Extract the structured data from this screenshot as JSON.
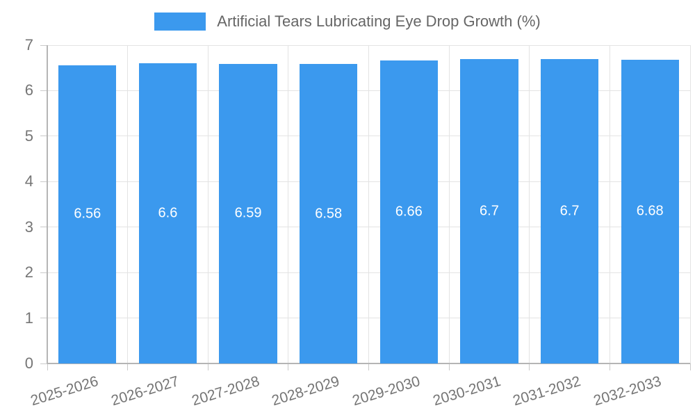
{
  "chart_data": {
    "type": "bar",
    "title": "",
    "series_name": "Artificial Tears Lubricating Eye Drop Growth (%)",
    "categories": [
      "2025-2026",
      "2026-2027",
      "2027-2028",
      "2028-2029",
      "2029-2030",
      "2030-2031",
      "2031-2032",
      "2032-2033"
    ],
    "values": [
      6.56,
      6.6,
      6.59,
      6.58,
      6.66,
      6.7,
      6.7,
      6.68
    ],
    "bar_value_labels": [
      "6.56",
      "6.6",
      "6.59",
      "6.58",
      "6.66",
      "6.7",
      "6.7",
      "6.68"
    ],
    "xlabel": "",
    "ylabel": "",
    "ylim": [
      0,
      7
    ],
    "yticks": [
      0,
      1,
      2,
      3,
      4,
      5,
      6,
      7
    ],
    "grid": true,
    "legend_position": "top",
    "colors": {
      "bar": "#3B99EE",
      "bar_label": "#FFFFFF",
      "tick_label": "#757575",
      "legend_text": "#666666",
      "grid_line": "#E3E3E3",
      "axis_line": "#B5B5B5",
      "tick_mark": "#C9C9C9"
    }
  }
}
